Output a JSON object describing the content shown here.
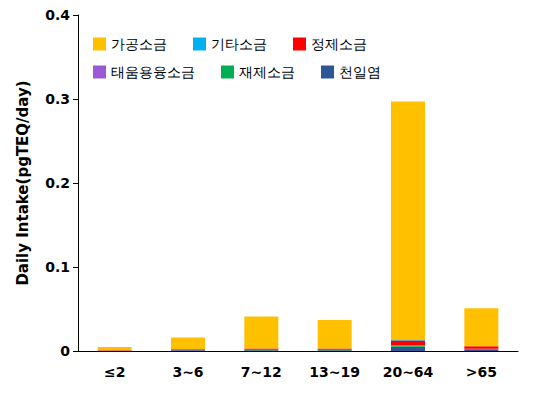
{
  "chart_data": {
    "type": "bar",
    "stacked": true,
    "legend": "upper left",
    "grid": false,
    "y_label": "Daily Intake(pgTEQ/day)",
    "categories": [
      "≤2",
      "3~6",
      "7~12",
      "13~19",
      "20~64",
      ">65"
    ],
    "ylim": [
      0,
      0.4
    ],
    "yticks": [
      0,
      0.1,
      0.2,
      0.3,
      0.4
    ],
    "series": [
      {
        "name": "가공소금",
        "color": "#ffc000",
        "values": [
          0.004,
          0.014,
          0.038,
          0.034,
          0.284,
          0.045
        ]
      },
      {
        "name": "기타소금",
        "color": "#00b0f0",
        "values": [
          0,
          0.0001,
          0.0001,
          0.0001,
          0.0005,
          0.0002
        ]
      },
      {
        "name": "정제소금",
        "color": "#ff0000",
        "values": [
          0.0005,
          0.001,
          0.0015,
          0.0015,
          0.006,
          0.003
        ]
      },
      {
        "name": "태움용융소금",
        "color": "#9b59d6",
        "values": [
          0,
          0.0001,
          0.0001,
          0.0001,
          0.0005,
          0.0002
        ]
      },
      {
        "name": "재제소금",
        "color": "#00b050",
        "values": [
          0.0001,
          0.0002,
          0.0003,
          0.0003,
          0.001,
          0.0004
        ]
      },
      {
        "name": "천일염",
        "color": "#2f5597",
        "values": [
          0.0003,
          0.0008,
          0.001,
          0.001,
          0.005,
          0.002
        ]
      }
    ]
  }
}
